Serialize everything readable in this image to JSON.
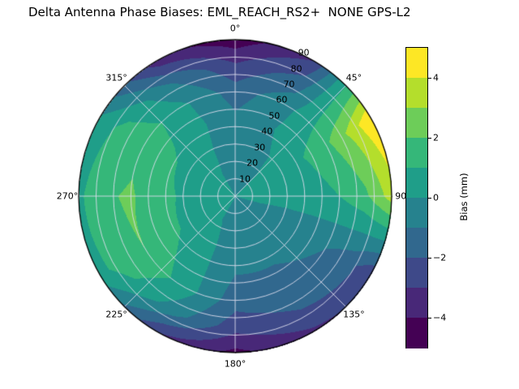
{
  "title": "Delta Antenna Phase Biases: EML_REACH_RS2+  NONE GPS-L2",
  "background": "#ffffff",
  "chart_data": {
    "type": "heatmap",
    "projection": "polar",
    "title": "Delta Antenna Phase Biases: EML_REACH_RS2+  NONE GPS-L2",
    "azimuth_direction": "clockwise-from-north",
    "azimuth_ticks": [
      {
        "deg": 0,
        "label": "0°"
      },
      {
        "deg": 45,
        "label": "45°"
      },
      {
        "deg": 90,
        "label": "90°"
      },
      {
        "deg": 135,
        "label": "135°"
      },
      {
        "deg": 180,
        "label": "180°"
      },
      {
        "deg": 225,
        "label": "225°"
      },
      {
        "deg": 270,
        "label": "270°"
      },
      {
        "deg": 315,
        "label": "315°"
      }
    ],
    "radial_ticks": [
      10,
      20,
      30,
      40,
      50,
      60,
      70,
      80,
      90
    ],
    "radial_tick_azimuth_deg": 25,
    "radial_max": 90,
    "grid_line_color": "#dcdcec",
    "levels": {
      "min": -5,
      "max": 5,
      "step": 1
    },
    "level_colors": [
      "#440154",
      "#482878",
      "#3e4989",
      "#31688e",
      "#26828e",
      "#1f9e89",
      "#35b779",
      "#6dcd59",
      "#b4de2c",
      "#fde725"
    ],
    "colorbar": {
      "label": "Bias (mm)",
      "range": [
        -5,
        5
      ],
      "ticks": [
        {
          "value": 4,
          "label": "4"
        },
        {
          "value": 2,
          "label": "2"
        },
        {
          "value": 0,
          "label": "0"
        },
        {
          "value": -2,
          "label": "−2"
        },
        {
          "value": -4,
          "label": "−4"
        }
      ]
    },
    "grid": {
      "azimuth_deg": [
        0,
        30,
        60,
        90,
        120,
        150,
        180,
        210,
        240,
        270,
        300,
        330
      ],
      "radius": [
        0,
        15,
        30,
        45,
        60,
        75,
        90
      ],
      "bias_mm": [
        [
          0.0,
          -0.2,
          -0.5,
          -0.8,
          -1.5,
          -2.8,
          -4.6
        ],
        [
          0.0,
          -0.1,
          -0.2,
          0.0,
          -0.3,
          -1.5,
          -3.0
        ],
        [
          0.0,
          0.1,
          0.4,
          1.0,
          1.8,
          3.2,
          5.0
        ],
        [
          0.0,
          0.1,
          0.3,
          0.6,
          1.0,
          1.8,
          3.5
        ],
        [
          0.0,
          -0.1,
          -0.4,
          -0.7,
          -1.0,
          -1.6,
          -2.8
        ],
        [
          0.0,
          -0.2,
          -0.5,
          -1.0,
          -1.4,
          -2.0,
          -3.2
        ],
        [
          0.0,
          -0.2,
          -0.5,
          -1.0,
          -1.6,
          -2.6,
          -4.3
        ],
        [
          0.0,
          0.0,
          0.2,
          0.4,
          0.6,
          -0.4,
          -3.0
        ],
        [
          0.0,
          0.2,
          0.7,
          1.4,
          2.0,
          1.6,
          0.6
        ],
        [
          0.0,
          0.3,
          0.8,
          1.5,
          2.1,
          1.9,
          0.8
        ],
        [
          0.0,
          0.2,
          0.6,
          1.3,
          1.8,
          1.4,
          0.2
        ],
        [
          0.0,
          0.0,
          0.1,
          0.3,
          0.2,
          -1.0,
          -3.6
        ]
      ]
    }
  }
}
